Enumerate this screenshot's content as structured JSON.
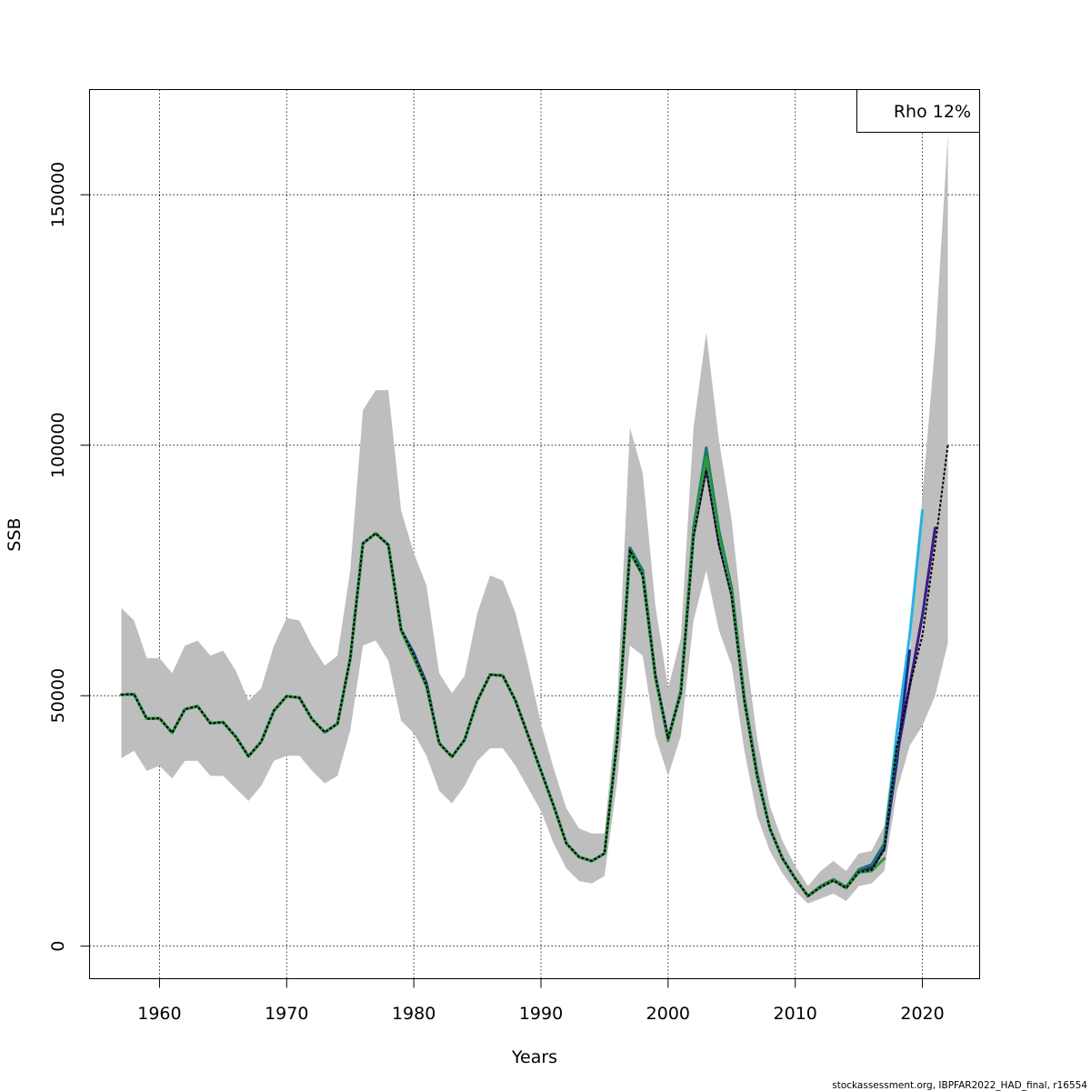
{
  "chart_data": {
    "type": "line",
    "xlabel": "Years",
    "ylabel": "SSB",
    "xlim": [
      1954.5,
      2024.5
    ],
    "ylim": [
      -6500,
      171000
    ],
    "x_ticks": [
      1960,
      1970,
      1980,
      1990,
      2000,
      2010,
      2020
    ],
    "y_ticks": [
      0,
      50000,
      100000,
      150000
    ],
    "y_tick_labels": [
      "0",
      "50000",
      "100000",
      "150000"
    ],
    "grid": true,
    "legend": {
      "text": "Rho 12%",
      "position": "top-right"
    },
    "footer": "stockassessment.org, IBPFAR2022_HAD_final, r16554",
    "colors": {
      "band": "#bebebe",
      "peels": [
        "#23b2e6",
        "#3d1a8a",
        "#1f2a86",
        "#1a7a6a",
        "#2e9a3a",
        "#b8a43a"
      ],
      "main": "#000000"
    },
    "confidence_band": {
      "x": [
        1957,
        1958,
        1959,
        1960,
        1961,
        1962,
        1963,
        1964,
        1965,
        1966,
        1967,
        1968,
        1969,
        1970,
        1971,
        1972,
        1973,
        1974,
        1975,
        1976,
        1977,
        1978,
        1979,
        1980,
        1981,
        1982,
        1983,
        1984,
        1985,
        1986,
        1987,
        1988,
        1989,
        1990,
        1991,
        1992,
        1993,
        1994,
        1995,
        1996,
        1997,
        1998,
        1999,
        2000,
        2001,
        2002,
        2003,
        2004,
        2005,
        2006,
        2007,
        2008,
        2009,
        2010,
        2011,
        2012,
        2013,
        2014,
        2015,
        2016,
        2017,
        2018,
        2019,
        2020,
        2021,
        2022
      ],
      "lower": [
        37500,
        39000,
        35000,
        36000,
        33500,
        37000,
        37000,
        34000,
        34000,
        31500,
        29000,
        32000,
        37000,
        38000,
        38000,
        35000,
        32500,
        34000,
        43000,
        60000,
        61000,
        57000,
        45000,
        42500,
        38000,
        31000,
        28500,
        32000,
        37000,
        39500,
        39500,
        36000,
        31500,
        27000,
        20500,
        15500,
        13000,
        12500,
        14000,
        33000,
        60000,
        58000,
        42000,
        34000,
        42000,
        65000,
        75000,
        63000,
        56000,
        39000,
        26000,
        19000,
        14500,
        11000,
        8500,
        9500,
        10500,
        9000,
        12000,
        12500,
        15000,
        31000,
        40000,
        44000,
        50000,
        60500
      ],
      "upper": [
        67500,
        65000,
        57500,
        57500,
        54500,
        60000,
        61000,
        58000,
        59000,
        55000,
        49000,
        51500,
        60000,
        65500,
        65000,
        60000,
        56000,
        58000,
        75000,
        107000,
        111000,
        111000,
        87000,
        78500,
        72000,
        54500,
        50500,
        54000,
        66500,
        74000,
        73000,
        66500,
        56000,
        44500,
        35500,
        27500,
        23500,
        22500,
        22500,
        49000,
        103500,
        94500,
        68000,
        51500,
        61500,
        103500,
        122500,
        101000,
        85000,
        61000,
        41500,
        28000,
        21000,
        16000,
        12000,
        15000,
        17000,
        15000,
        18500,
        19000,
        24000,
        44500,
        58000,
        90000,
        120000,
        162000
      ]
    },
    "series": [
      {
        "x": [
          1957,
          1958,
          1959,
          1960,
          1961,
          1962,
          1963,
          1964,
          1965,
          1966,
          1967,
          1968,
          1969,
          1970,
          1971,
          1972,
          1973,
          1974,
          1975,
          1976,
          1977,
          1978,
          1979,
          1980,
          1981,
          1982,
          1983,
          1984,
          1985,
          1986,
          1987,
          1988,
          1989,
          1990,
          1991,
          1992,
          1993,
          1994,
          1995,
          1996,
          1997,
          1998,
          1999,
          2000,
          2001,
          2002,
          2003,
          2004,
          2005,
          2006,
          2007,
          2008,
          2009,
          2010,
          2011,
          2012,
          2013,
          2014,
          2015,
          2016,
          2017,
          2018,
          2019,
          2020,
          2021,
          2022
        ],
        "y": [
          50200,
          50300,
          45400,
          45500,
          42600,
          47300,
          47900,
          44500,
          44700,
          41800,
          37900,
          40800,
          47000,
          49900,
          49600,
          45300,
          42700,
          44400,
          57400,
          80400,
          82400,
          80100,
          63200,
          58000,
          52000,
          40500,
          37800,
          41200,
          49000,
          54200,
          54000,
          49000,
          42000,
          35000,
          28000,
          20500,
          17800,
          17000,
          18500,
          41000,
          79000,
          74000,
          54000,
          41500,
          50500,
          82000,
          95000,
          80000,
          70000,
          49000,
          34000,
          23500,
          17500,
          13500,
          10000,
          11800,
          13100,
          11600,
          14800,
          15200,
          19200,
          40000,
          52000,
          62000,
          80000,
          100000
        ]
      },
      {
        "x": [
          1957,
          1958,
          1959,
          1960,
          1961,
          1962,
          1963,
          1964,
          1965,
          1966,
          1967,
          1968,
          1969,
          1970,
          1971,
          1972,
          1973,
          1974,
          1975,
          1976,
          1977,
          1978,
          1979,
          1980,
          1981,
          1982,
          1983,
          1984,
          1985,
          1986,
          1987,
          1988,
          1989,
          1990,
          1991,
          1992,
          1993,
          1994,
          1995,
          1996,
          1997,
          1998,
          1999,
          2000,
          2001,
          2002,
          2003,
          2004,
          2005,
          2006,
          2007,
          2008,
          2009,
          2010,
          2011,
          2012,
          2013,
          2014,
          2015,
          2016,
          2017,
          2018,
          2019,
          2020
        ],
        "y": [
          50200,
          50300,
          45400,
          45500,
          42600,
          47300,
          47900,
          44500,
          44700,
          41800,
          37900,
          40800,
          47000,
          49900,
          49600,
          45300,
          42700,
          44400,
          57400,
          80400,
          82400,
          80100,
          63200,
          58000,
          52000,
          40500,
          37800,
          41200,
          49000,
          54200,
          54000,
          49000,
          42000,
          35000,
          28000,
          20500,
          17800,
          17000,
          18500,
          41000,
          79000,
          74000,
          54000,
          41500,
          50500,
          82000,
          96000,
          81000,
          70000,
          49000,
          34000,
          23500,
          17500,
          13500,
          10000,
          11900,
          13200,
          11700,
          15000,
          15500,
          20000,
          43000,
          62000,
          87000
        ]
      },
      {
        "x": [
          1957,
          1958,
          1959,
          1960,
          1961,
          1962,
          1963,
          1964,
          1965,
          1966,
          1967,
          1968,
          1969,
          1970,
          1971,
          1972,
          1973,
          1974,
          1975,
          1976,
          1977,
          1978,
          1979,
          1980,
          1981,
          1982,
          1983,
          1984,
          1985,
          1986,
          1987,
          1988,
          1989,
          1990,
          1991,
          1992,
          1993,
          1994,
          1995,
          1996,
          1997,
          1998,
          1999,
          2000,
          2001,
          2002,
          2003,
          2004,
          2005,
          2006,
          2007,
          2008,
          2009,
          2010,
          2011,
          2012,
          2013,
          2014,
          2015,
          2016,
          2017,
          2018,
          2019,
          2020,
          2021
        ],
        "y": [
          50200,
          50300,
          45400,
          45500,
          42600,
          47300,
          47900,
          44500,
          44700,
          41800,
          37900,
          40800,
          47000,
          49900,
          49600,
          45300,
          42700,
          44400,
          57400,
          80400,
          82400,
          80100,
          63200,
          58000,
          52000,
          40500,
          37800,
          41200,
          49000,
          54200,
          54000,
          49000,
          42000,
          35000,
          28000,
          20500,
          17800,
          17000,
          18500,
          41000,
          79000,
          74000,
          54000,
          41500,
          50500,
          82000,
          95500,
          80500,
          70000,
          49000,
          34000,
          23500,
          17500,
          13500,
          10000,
          11800,
          13100,
          11600,
          14800,
          15300,
          19500,
          38000,
          52000,
          66000,
          83500
        ]
      },
      {
        "x": [
          1957,
          1958,
          1959,
          1960,
          1961,
          1962,
          1963,
          1964,
          1965,
          1966,
          1967,
          1968,
          1969,
          1970,
          1971,
          1972,
          1973,
          1974,
          1975,
          1976,
          1977,
          1978,
          1979,
          1980,
          1981,
          1982,
          1983,
          1984,
          1985,
          1986,
          1987,
          1988,
          1989,
          1990,
          1991,
          1992,
          1993,
          1994,
          1995,
          1996,
          1997,
          1998,
          1999,
          2000,
          2001,
          2002,
          2003,
          2004,
          2005,
          2006,
          2007,
          2008,
          2009,
          2010,
          2011,
          2012,
          2013,
          2014,
          2015,
          2016,
          2017,
          2018,
          2019
        ],
        "y": [
          50200,
          50300,
          45400,
          45500,
          42600,
          47300,
          47900,
          44500,
          44700,
          41800,
          37900,
          40800,
          47000,
          49900,
          49600,
          45300,
          42700,
          44400,
          57400,
          80400,
          82400,
          80100,
          63200,
          58500,
          52500,
          40500,
          37800,
          41200,
          49000,
          54200,
          54000,
          49000,
          42000,
          35000,
          28000,
          20500,
          17800,
          17000,
          18500,
          41500,
          79500,
          75000,
          54000,
          41200,
          51000,
          83000,
          98500,
          82500,
          71000,
          49500,
          34500,
          23500,
          17500,
          13500,
          10000,
          12000,
          13300,
          11800,
          15000,
          15800,
          19500,
          37000,
          59000
        ]
      },
      {
        "x": [
          1957,
          1958,
          1959,
          1960,
          1961,
          1962,
          1963,
          1964,
          1965,
          1966,
          1967,
          1968,
          1969,
          1970,
          1971,
          1972,
          1973,
          1974,
          1975,
          1976,
          1977,
          1978,
          1979,
          1980,
          1981,
          1982,
          1983,
          1984,
          1985,
          1986,
          1987,
          1988,
          1989,
          1990,
          1991,
          1992,
          1993,
          1994,
          1995,
          1996,
          1997,
          1998,
          1999,
          2000,
          2001,
          2002,
          2003,
          2004,
          2005,
          2006,
          2007,
          2008,
          2009,
          2010,
          2011,
          2012,
          2013,
          2014,
          2015,
          2016,
          2017,
          2018
        ],
        "y": [
          50200,
          50300,
          45400,
          45500,
          42600,
          47300,
          47900,
          44500,
          44700,
          41800,
          37900,
          40800,
          47000,
          49900,
          49600,
          45300,
          42700,
          44400,
          57400,
          80400,
          82400,
          80100,
          63200,
          58000,
          52000,
          40500,
          37800,
          41200,
          49000,
          54200,
          54000,
          49000,
          42000,
          35000,
          28000,
          20500,
          17800,
          17000,
          18500,
          41500,
          79500,
          75000,
          54000,
          41000,
          51000,
          83500,
          99500,
          83000,
          71500,
          49500,
          34500,
          23500,
          17500,
          13500,
          10000,
          12000,
          13300,
          11800,
          15300,
          16300,
          20500,
          40000
        ]
      },
      {
        "x": [
          1957,
          1958,
          1959,
          1960,
          1961,
          1962,
          1963,
          1964,
          1965,
          1966,
          1967,
          1968,
          1969,
          1970,
          1971,
          1972,
          1973,
          1974,
          1975,
          1976,
          1977,
          1978,
          1979,
          1980,
          1981,
          1982,
          1983,
          1984,
          1985,
          1986,
          1987,
          1988,
          1989,
          1990,
          1991,
          1992,
          1993,
          1994,
          1995,
          1996,
          1997,
          1998,
          1999,
          2000,
          2001,
          2002,
          2003,
          2004,
          2005,
          2006,
          2007,
          2008,
          2009,
          2010,
          2011,
          2012,
          2013,
          2014,
          2015,
          2016,
          2017
        ],
        "y": [
          50200,
          50300,
          45400,
          45500,
          42600,
          47300,
          47900,
          44500,
          44700,
          41800,
          37900,
          40800,
          47000,
          49900,
          49600,
          45300,
          42700,
          44400,
          57400,
          80400,
          82400,
          80100,
          63000,
          57500,
          51800,
          40500,
          37800,
          41200,
          49000,
          54200,
          54000,
          49000,
          42000,
          35000,
          28000,
          20500,
          17800,
          17000,
          18500,
          41000,
          78500,
          74000,
          53500,
          41200,
          50500,
          82500,
          97500,
          82000,
          70500,
          49000,
          34000,
          23500,
          17500,
          13500,
          10000,
          11800,
          13100,
          11600,
          14700,
          15000,
          17500
        ]
      }
    ]
  }
}
